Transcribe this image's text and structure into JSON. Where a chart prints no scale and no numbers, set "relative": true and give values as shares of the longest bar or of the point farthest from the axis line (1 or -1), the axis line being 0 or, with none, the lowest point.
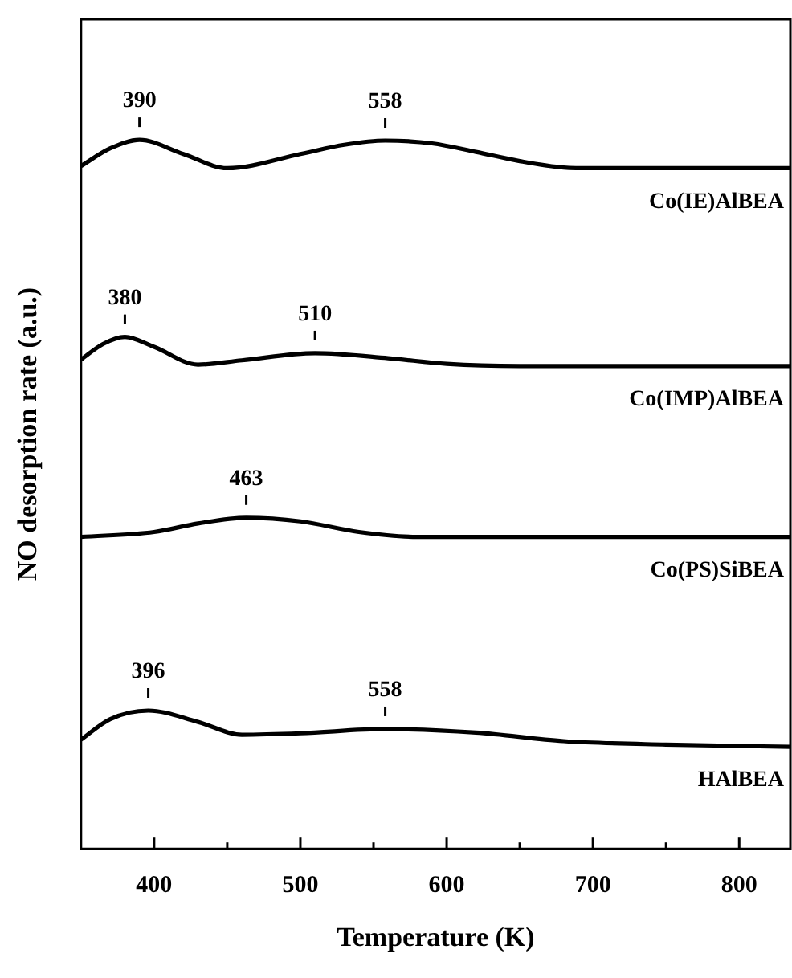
{
  "chart_data": {
    "type": "line",
    "relative": true,
    "xlabel": "Temperature (K)",
    "ylabel": "NO desorption rate (a.u.)",
    "xlim": [
      350,
      835
    ],
    "xticks": [
      400,
      500,
      600,
      700,
      800,
      {
        "value": 450,
        "label": null
      },
      {
        "value": 550,
        "label": null
      },
      {
        "value": 650,
        "label": null
      },
      {
        "value": 750,
        "label": null
      }
    ],
    "grid": false,
    "legend": false,
    "marker": "none",
    "line_style": "solid",
    "series": [
      {
        "name": "Co(IE)AlBEA",
        "color": "#000000",
        "x": [
          350,
          370,
          390,
          420,
          450,
          500,
          530,
          558,
          590,
          620,
          650,
          680,
          700,
          835
        ],
        "values": [
          0.963,
          0.988,
          1.0,
          0.98,
          0.96,
          0.98,
          0.993,
          0.999,
          0.995,
          0.983,
          0.97,
          0.961,
          0.96,
          0.96
        ]
      },
      {
        "name": "Co(IMP)AlBEA",
        "color": "#000000",
        "x": [
          350,
          365,
          380,
          400,
          430,
          460,
          510,
          560,
          600,
          650,
          835
        ],
        "values": [
          0.69,
          0.712,
          0.722,
          0.708,
          0.683,
          0.689,
          0.699,
          0.692,
          0.684,
          0.681,
          0.681
        ]
      },
      {
        "name": "Co(PS)SiBEA",
        "color": "#000000",
        "x": [
          350,
          400,
          430,
          463,
          500,
          540,
          580,
          835
        ],
        "values": [
          0.44,
          0.447,
          0.459,
          0.467,
          0.462,
          0.447,
          0.44,
          0.44
        ]
      },
      {
        "name": "HAlBEA",
        "color": "#000000",
        "x": [
          350,
          370,
          396,
          430,
          460,
          500,
          558,
          620,
          680,
          750,
          835
        ],
        "values": [
          0.154,
          0.183,
          0.195,
          0.179,
          0.161,
          0.163,
          0.169,
          0.164,
          0.152,
          0.147,
          0.144
        ]
      }
    ],
    "annotations": [
      {
        "text": "390",
        "x": 390,
        "y": 1.0
      },
      {
        "text": "558",
        "x": 558,
        "y": 0.999
      },
      {
        "text": "380",
        "x": 380,
        "y": 0.722
      },
      {
        "text": "510",
        "x": 510,
        "y": 0.699
      },
      {
        "text": "463",
        "x": 463,
        "y": 0.467
      },
      {
        "text": "396",
        "x": 396,
        "y": 0.195
      },
      {
        "text": "558",
        "x": 558,
        "y": 0.169
      }
    ]
  }
}
